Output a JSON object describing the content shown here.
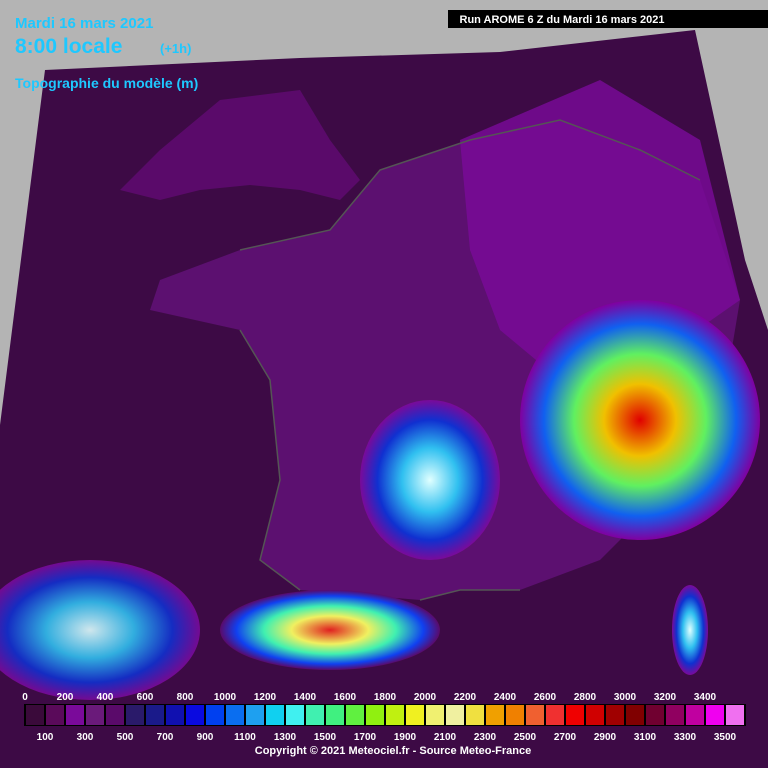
{
  "header": {
    "date": "Mardi 16 mars 2021",
    "time": "8:00 locale",
    "offset": "(+1h)",
    "product": "Topographie du modèle (m)",
    "run": "Run AROME 6 Z du Mardi 16 mars 2021"
  },
  "legend": {
    "levels": [
      0,
      100,
      200,
      300,
      400,
      500,
      600,
      700,
      800,
      900,
      1000,
      1100,
      1200,
      1300,
      1400,
      1500,
      1600,
      1700,
      1800,
      1900,
      2000,
      2100,
      2200,
      2300,
      2400,
      2500,
      2600,
      2700,
      2800,
      2900,
      3000,
      3100,
      3200,
      3300,
      3400,
      3500
    ],
    "colors": [
      "#3a0a3a",
      "#5a0a5a",
      "#7a0a9a",
      "#6a1a7a",
      "#5a0a6a",
      "#2a1a6a",
      "#1a1a8a",
      "#1010b0",
      "#0a0ae0",
      "#0040f0",
      "#0a6ef0",
      "#1ea0f0",
      "#10d0f0",
      "#40f0f0",
      "#40f0b0",
      "#40f080",
      "#60f040",
      "#90f010",
      "#c0f010",
      "#f0f020",
      "#f0f070",
      "#f0f0a0",
      "#f0e040",
      "#f0a000",
      "#f08000",
      "#f06030",
      "#f03030",
      "#f00000",
      "#d00000",
      "#a00000",
      "#800000",
      "#700030",
      "#900060",
      "#c000a0",
      "#f000f0",
      "#f070f0"
    ]
  },
  "footer": {
    "copyright": "Copyright © 2021 Meteociel.fr - Source Meteo-France"
  }
}
